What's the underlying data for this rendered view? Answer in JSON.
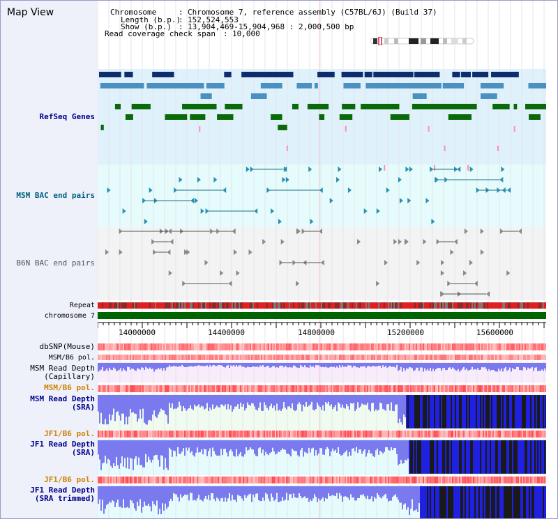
{
  "title": "Map View",
  "header": {
    "chromosome_label": "Chromosome",
    "chromosome_value": "Chromosome 7, reference assembly (C57BL/6J) (Build 37)",
    "length_label": "Length (b.p.)",
    "length_value": "152,524,553",
    "show_label": "Show (b.p.)",
    "show_value": "13,904,469-15,904,968 : 2,000,500 bp",
    "coverage_label": "Read coverage check span",
    "coverage_value": "10,000"
  },
  "tracks": {
    "refseq": "RefSeq Genes",
    "msm_bac": "MSM BAC end pairs",
    "b6n_bac": "B6N BAC end pairs",
    "repeat": "Repeat",
    "chromosome": "chromosome 7",
    "dbsnp": "dbSNP(Mouse)",
    "msm_b6_pol_1": "MSM/B6 pol.",
    "msm_read_depth_cap_1": "MSM Read Depth",
    "msm_read_depth_cap_2": "(Capillary)",
    "msm_b6_pol_2": "MSM/B6 pol.",
    "msm_read_depth_sra_1": "MSM Read Depth",
    "msm_read_depth_sra_2": "(SRA)",
    "jf1_b6_pol_1": "JF1/B6 pol.",
    "jf1_read_depth_sra_1": "JF1 Read Depth",
    "jf1_read_depth_sra_2": "(SRA)",
    "jf1_b6_pol_2": "JF1/B6 pol.",
    "jf1_read_depth_trim_1": "JF1 Read Depth",
    "jf1_read_depth_trim_2": "(SRA trimmed)"
  },
  "axis": {
    "ticks": [
      "14000000",
      "14400000",
      "14800000",
      "15200000",
      "15600000"
    ]
  },
  "colors": {
    "refseq_label": "#00008b",
    "msm_label": "#006080",
    "b6n_label": "#555555",
    "pol_label": "#d08000",
    "depth_label": "#00008b",
    "gene_dark": "#0d2d6e",
    "gene_mid": "#4a90c0",
    "gene_green": "#0a6a0a",
    "gene_pink": "#ff8fb0",
    "chromosome_bar": "#006400"
  }
}
